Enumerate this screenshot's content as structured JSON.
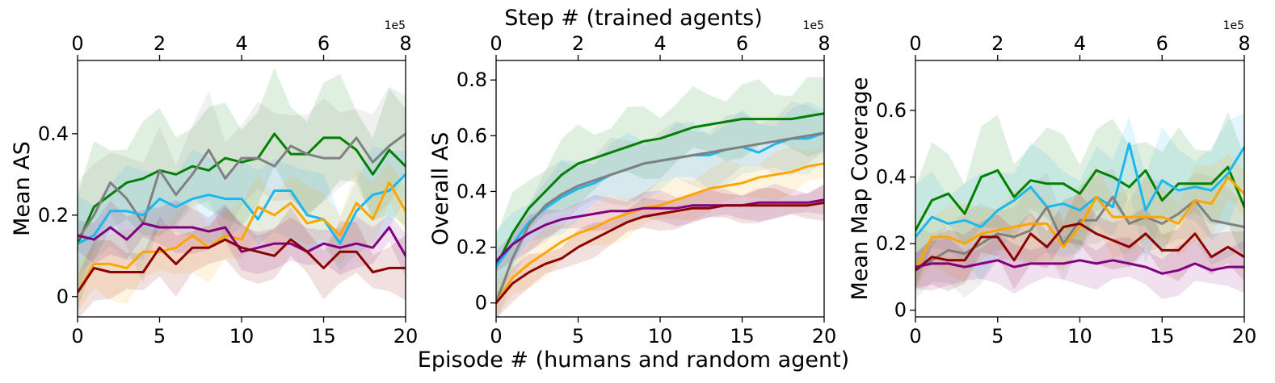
{
  "figure": {
    "top_title": "Step # (trained agents)",
    "bottom_title": "Episode # (humans and random agent)",
    "top_scale_label": "1e5"
  },
  "chart_data": [
    {
      "type": "line",
      "ylabel": "Mean AS",
      "xlabel": "Episode #",
      "x2label": "Step #",
      "xlim": [
        0,
        20
      ],
      "x_ticks": [
        0,
        5,
        10,
        15,
        20
      ],
      "x2lim": [
        0,
        8
      ],
      "x2_ticks": [
        0,
        2,
        4,
        6,
        8
      ],
      "ylim": [
        -0.05,
        0.58
      ],
      "y_ticks": [
        0.0,
        0.2,
        0.4
      ],
      "x": [
        0,
        1,
        2,
        3,
        4,
        5,
        6,
        7,
        8,
        9,
        10,
        11,
        12,
        13,
        14,
        15,
        16,
        17,
        18,
        19,
        20
      ],
      "series": [
        {
          "name": "green",
          "color": "#008000",
          "band": 0.12,
          "values": [
            0.13,
            0.22,
            0.25,
            0.28,
            0.29,
            0.31,
            0.3,
            0.32,
            0.31,
            0.34,
            0.33,
            0.34,
            0.4,
            0.35,
            0.35,
            0.39,
            0.39,
            0.36,
            0.3,
            0.36,
            0.32
          ]
        },
        {
          "name": "gray",
          "color": "#808080",
          "band": 0.11,
          "values": [
            0.14,
            0.2,
            0.28,
            0.24,
            0.18,
            0.31,
            0.25,
            0.3,
            0.36,
            0.29,
            0.34,
            0.34,
            0.32,
            0.37,
            0.35,
            0.34,
            0.34,
            0.39,
            0.33,
            0.37,
            0.4
          ]
        },
        {
          "name": "cyan",
          "color": "#1ab8ee",
          "band": 0.09,
          "values": [
            0.13,
            0.15,
            0.21,
            0.21,
            0.2,
            0.24,
            0.22,
            0.24,
            0.25,
            0.24,
            0.24,
            0.19,
            0.26,
            0.26,
            0.2,
            0.19,
            0.13,
            0.21,
            0.25,
            0.26,
            0.3
          ]
        },
        {
          "name": "orange",
          "color": "#ffa500",
          "band": 0.07,
          "values": [
            0.01,
            0.08,
            0.08,
            0.07,
            0.11,
            0.11,
            0.12,
            0.15,
            0.12,
            0.15,
            0.14,
            0.22,
            0.2,
            0.23,
            0.18,
            0.19,
            0.15,
            0.23,
            0.19,
            0.28,
            0.21
          ]
        },
        {
          "name": "purple",
          "color": "#800080",
          "band": 0.05,
          "values": [
            0.15,
            0.14,
            0.17,
            0.14,
            0.18,
            0.17,
            0.17,
            0.17,
            0.16,
            0.17,
            0.11,
            0.12,
            0.13,
            0.13,
            0.11,
            0.13,
            0.12,
            0.13,
            0.12,
            0.17,
            0.1
          ]
        },
        {
          "name": "darkred",
          "color": "#8b0000",
          "band": 0.06,
          "values": [
            0.01,
            0.07,
            0.06,
            0.06,
            0.06,
            0.12,
            0.08,
            0.12,
            0.12,
            0.14,
            0.12,
            0.11,
            0.1,
            0.14,
            0.11,
            0.07,
            0.11,
            0.11,
            0.06,
            0.07,
            0.07
          ]
        }
      ]
    },
    {
      "type": "line",
      "ylabel": "Overall AS",
      "xlabel": "Episode #",
      "x2label": "Step #",
      "xlim": [
        0,
        20
      ],
      "x_ticks": [
        0,
        5,
        10,
        15,
        20
      ],
      "x2lim": [
        0,
        8
      ],
      "x2_ticks": [
        0,
        2,
        4,
        6,
        8
      ],
      "ylim": [
        -0.05,
        0.87
      ],
      "y_ticks": [
        0.0,
        0.2,
        0.4,
        0.6,
        0.8
      ],
      "x": [
        0,
        1,
        2,
        3,
        4,
        5,
        6,
        7,
        8,
        9,
        10,
        11,
        12,
        13,
        14,
        15,
        16,
        17,
        18,
        19,
        20
      ],
      "series": [
        {
          "name": "green",
          "color": "#008000",
          "band": 0.11,
          "values": [
            0.13,
            0.25,
            0.34,
            0.4,
            0.46,
            0.5,
            0.52,
            0.54,
            0.56,
            0.58,
            0.59,
            0.61,
            0.63,
            0.64,
            0.65,
            0.66,
            0.66,
            0.66,
            0.66,
            0.67,
            0.68
          ]
        },
        {
          "name": "cyan",
          "color": "#1ab8ee",
          "band": 0.1,
          "values": [
            0.13,
            0.21,
            0.29,
            0.34,
            0.38,
            0.41,
            0.43,
            0.46,
            0.48,
            0.5,
            0.51,
            0.52,
            0.53,
            0.53,
            0.55,
            0.56,
            0.54,
            0.57,
            0.59,
            0.59,
            0.61
          ]
        },
        {
          "name": "gray",
          "color": "#808080",
          "band": 0.1,
          "values": [
            0.0,
            0.16,
            0.28,
            0.35,
            0.39,
            0.42,
            0.44,
            0.46,
            0.48,
            0.5,
            0.51,
            0.52,
            0.53,
            0.54,
            0.55,
            0.56,
            0.57,
            0.58,
            0.59,
            0.6,
            0.61
          ]
        },
        {
          "name": "orange",
          "color": "#ffa500",
          "band": 0.07,
          "values": [
            0.0,
            0.09,
            0.14,
            0.18,
            0.22,
            0.25,
            0.27,
            0.3,
            0.32,
            0.34,
            0.35,
            0.37,
            0.39,
            0.41,
            0.42,
            0.43,
            0.45,
            0.46,
            0.47,
            0.49,
            0.5
          ]
        },
        {
          "name": "purple",
          "color": "#800080",
          "band": 0.05,
          "values": [
            0.15,
            0.21,
            0.25,
            0.28,
            0.3,
            0.31,
            0.32,
            0.33,
            0.33,
            0.34,
            0.34,
            0.34,
            0.35,
            0.35,
            0.35,
            0.35,
            0.36,
            0.36,
            0.36,
            0.36,
            0.37
          ]
        },
        {
          "name": "darkred",
          "color": "#8b0000",
          "band": 0.05,
          "values": [
            0.0,
            0.07,
            0.11,
            0.14,
            0.16,
            0.2,
            0.23,
            0.26,
            0.29,
            0.31,
            0.32,
            0.33,
            0.34,
            0.34,
            0.35,
            0.35,
            0.35,
            0.35,
            0.35,
            0.35,
            0.36
          ]
        }
      ]
    },
    {
      "type": "line",
      "ylabel": "Mean Map Coverage",
      "xlabel": "Episode #",
      "x2label": "Step #",
      "xlim": [
        0,
        20
      ],
      "x_ticks": [
        0,
        5,
        10,
        15,
        20
      ],
      "x2lim": [
        0,
        8
      ],
      "x2_ticks": [
        0,
        2,
        4,
        6,
        8
      ],
      "ylim": [
        -0.02,
        0.75
      ],
      "y_ticks": [
        0.0,
        0.2,
        0.4,
        0.6
      ],
      "x": [
        0,
        1,
        2,
        3,
        4,
        5,
        6,
        7,
        8,
        9,
        10,
        11,
        12,
        13,
        14,
        15,
        16,
        17,
        18,
        19,
        20
      ],
      "series": [
        {
          "name": "green",
          "color": "#008000",
          "band": 0.13,
          "values": [
            0.24,
            0.33,
            0.35,
            0.29,
            0.4,
            0.42,
            0.34,
            0.39,
            0.38,
            0.38,
            0.35,
            0.42,
            0.4,
            0.37,
            0.42,
            0.33,
            0.38,
            0.38,
            0.38,
            0.43,
            0.31
          ]
        },
        {
          "name": "cyan",
          "color": "#1ab8ee",
          "band": 0.12,
          "values": [
            0.22,
            0.28,
            0.26,
            0.27,
            0.25,
            0.3,
            0.33,
            0.37,
            0.31,
            0.32,
            0.3,
            0.34,
            0.31,
            0.5,
            0.3,
            0.39,
            0.36,
            0.37,
            0.36,
            0.41,
            0.49
          ]
        },
        {
          "name": "gray",
          "color": "#808080",
          "band": 0.1,
          "values": [
            0.12,
            0.15,
            0.18,
            0.17,
            0.2,
            0.23,
            0.22,
            0.24,
            0.31,
            0.2,
            0.27,
            0.27,
            0.34,
            0.26,
            0.28,
            0.26,
            0.29,
            0.33,
            0.27,
            0.26,
            0.25
          ]
        },
        {
          "name": "orange",
          "color": "#ffa500",
          "band": 0.09,
          "values": [
            0.12,
            0.22,
            0.22,
            0.2,
            0.23,
            0.24,
            0.25,
            0.26,
            0.26,
            0.19,
            0.25,
            0.34,
            0.28,
            0.28,
            0.28,
            0.28,
            0.26,
            0.33,
            0.32,
            0.4,
            0.35
          ]
        },
        {
          "name": "darkred",
          "color": "#8b0000",
          "band": 0.07,
          "values": [
            0.12,
            0.16,
            0.15,
            0.15,
            0.22,
            0.22,
            0.15,
            0.23,
            0.19,
            0.25,
            0.26,
            0.23,
            0.21,
            0.19,
            0.23,
            0.18,
            0.18,
            0.23,
            0.16,
            0.19,
            0.16
          ]
        },
        {
          "name": "purple",
          "color": "#800080",
          "band": 0.06,
          "values": [
            0.13,
            0.14,
            0.14,
            0.13,
            0.14,
            0.15,
            0.13,
            0.14,
            0.14,
            0.14,
            0.15,
            0.14,
            0.15,
            0.14,
            0.13,
            0.11,
            0.12,
            0.14,
            0.12,
            0.13,
            0.13
          ]
        }
      ]
    }
  ]
}
